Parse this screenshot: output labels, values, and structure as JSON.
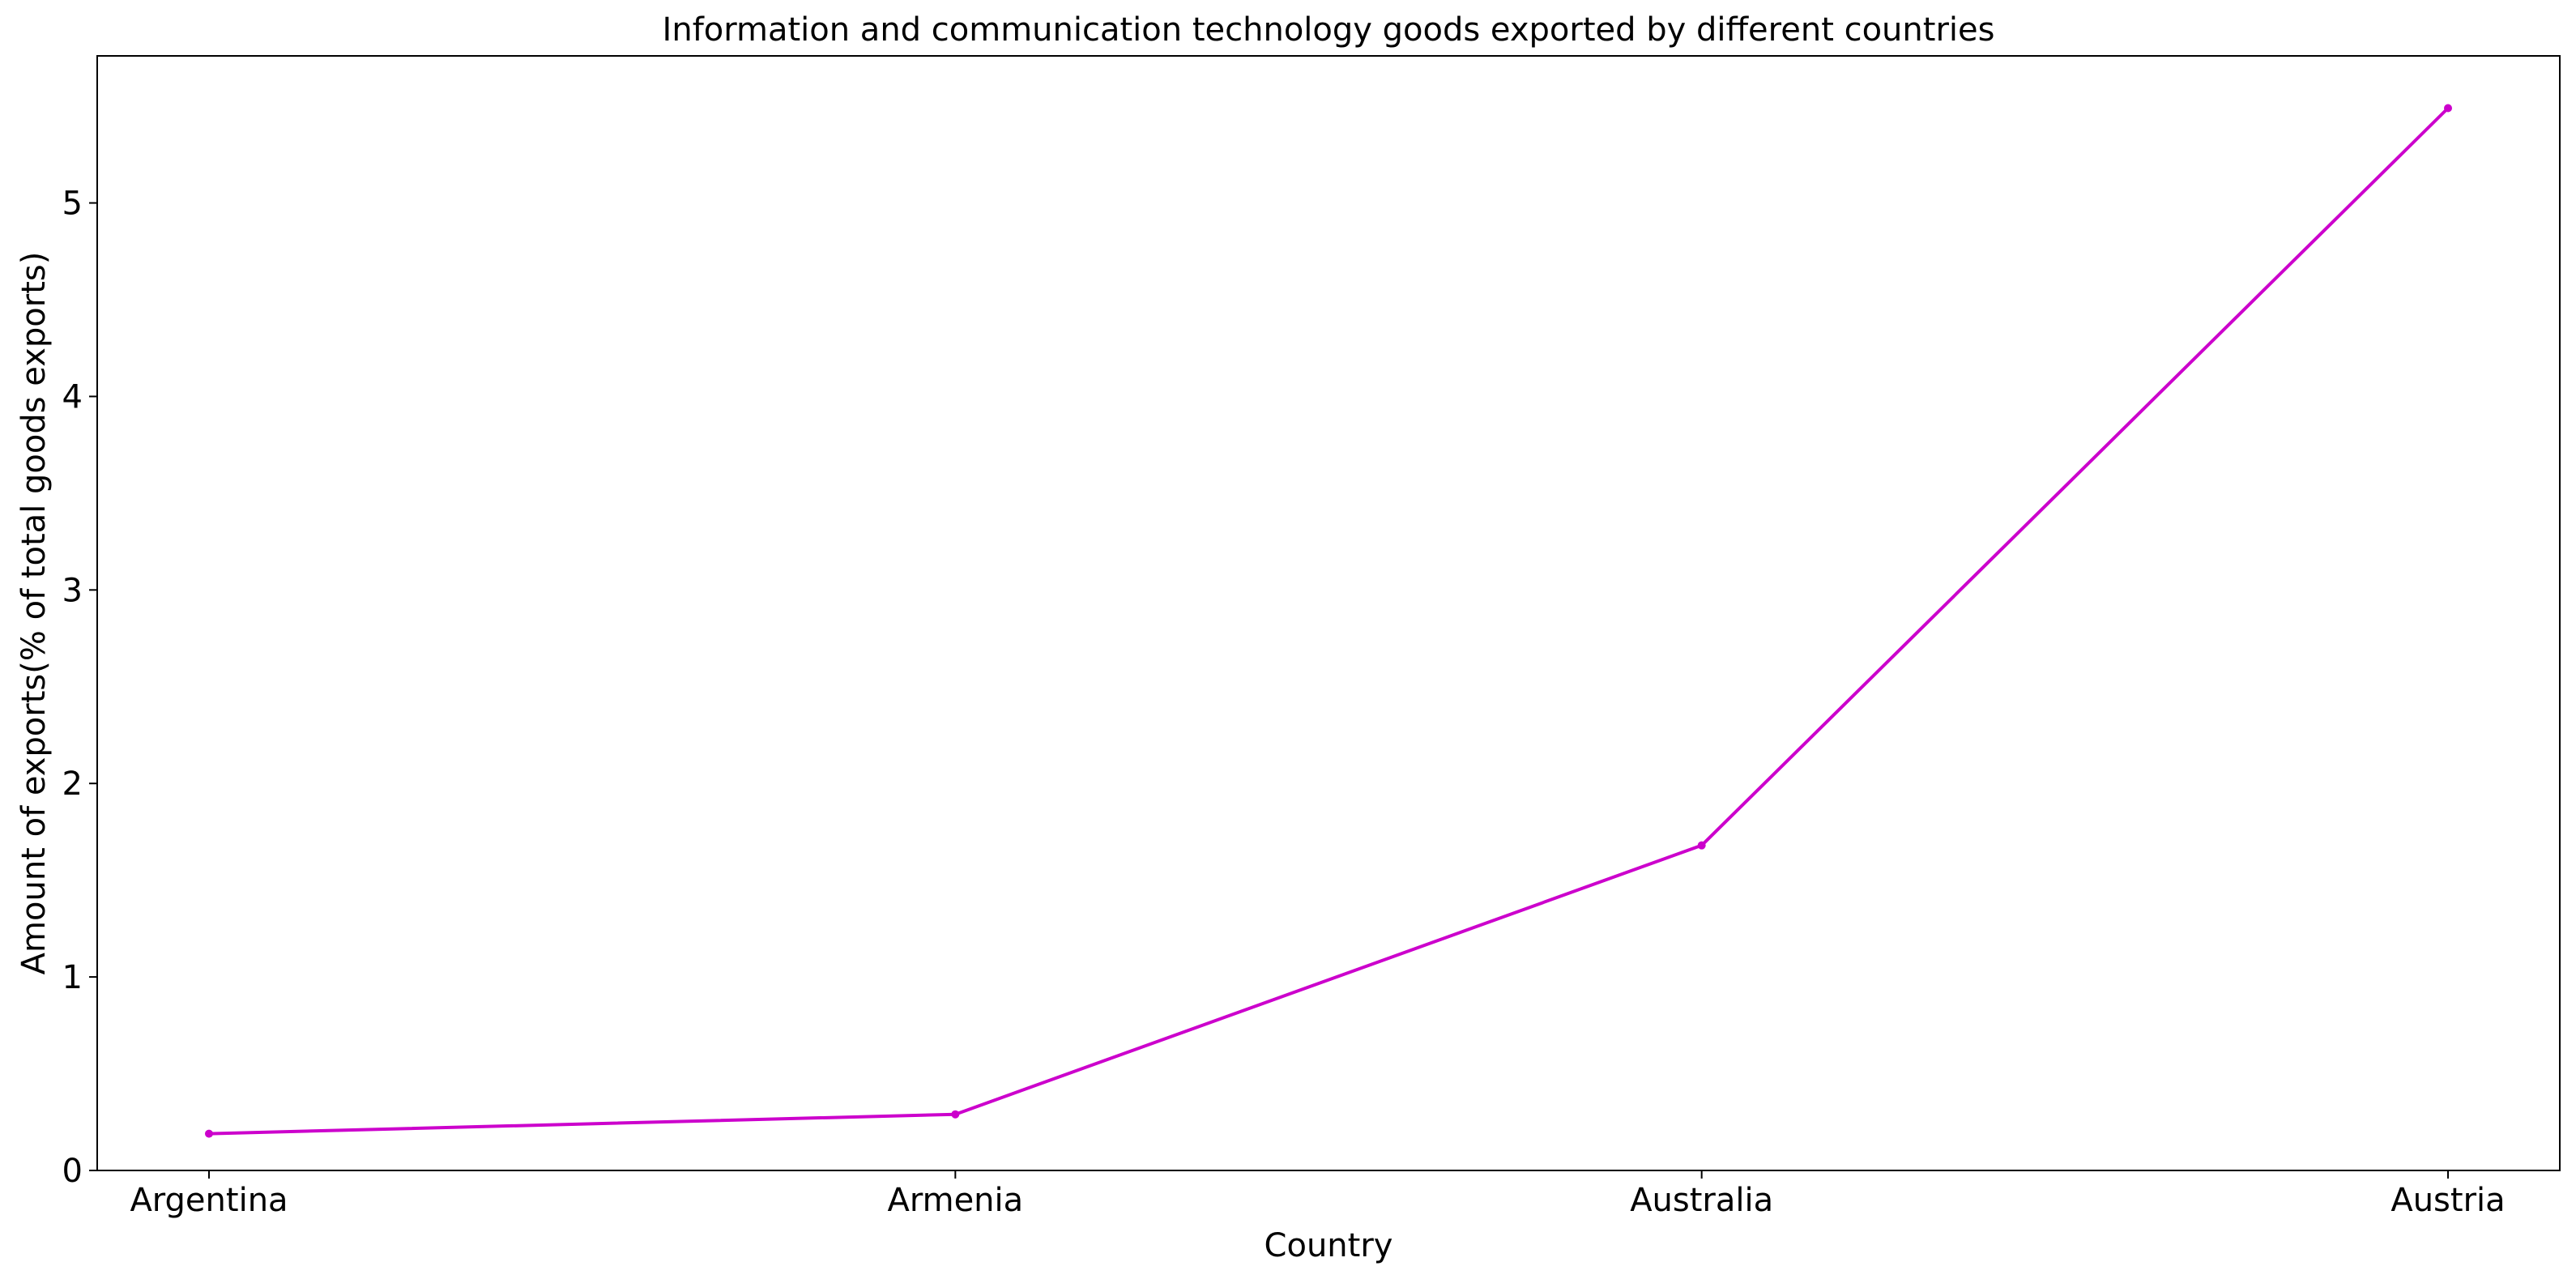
{
  "chart_data": {
    "type": "line",
    "title": "Information and communication technology goods exported by different countries",
    "xlabel": "Country",
    "ylabel": "Amount of exports(% of total goods exports)",
    "categories": [
      "Argentina",
      "Armenia",
      "Australia",
      "Austria"
    ],
    "series": [
      {
        "values": [
          0.19,
          0.29,
          1.68,
          5.49
        ]
      }
    ],
    "ylim": [
      0,
      5.76
    ],
    "yticks": [
      0,
      1,
      2,
      3,
      4,
      5
    ],
    "grid": false,
    "legend": "none"
  },
  "colors": {
    "series": "#cc00cc",
    "axis": "#000000",
    "background": "#ffffff"
  }
}
